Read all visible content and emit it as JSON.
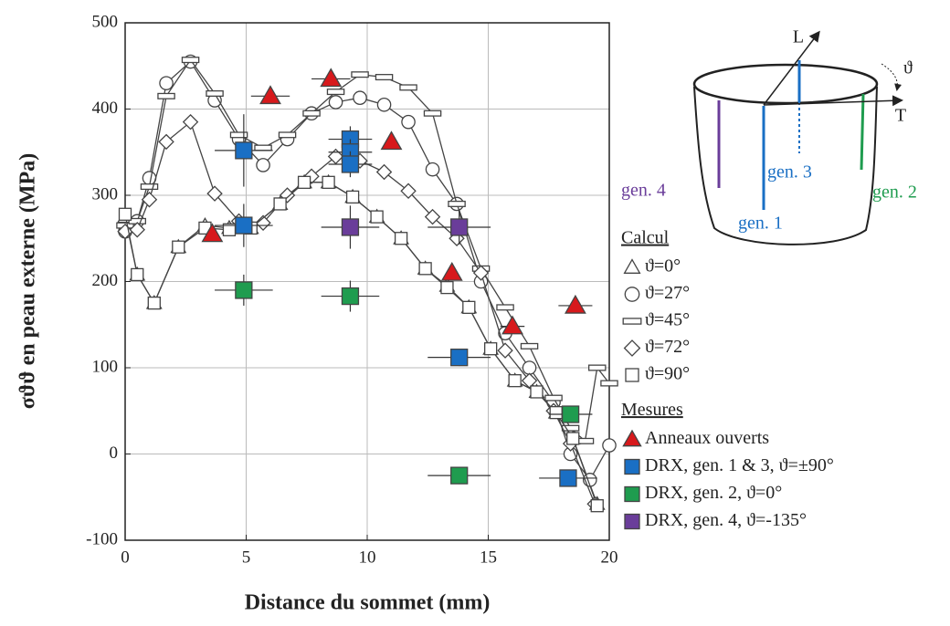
{
  "chart_data": {
    "type": "scatter",
    "x_label": "Distance du sommet (mm)",
    "y_label": "σϑϑ en peau externe (MPa)",
    "xlim": [
      0,
      20
    ],
    "ylim": [
      -100,
      500
    ],
    "xticks": [
      0,
      5,
      10,
      15,
      20
    ],
    "yticks": [
      -100,
      0,
      100,
      200,
      300,
      400,
      500
    ],
    "grid": true,
    "groups": [
      {
        "title": "Calcul",
        "series": [
          {
            "name": "ϑ=0°",
            "marker": "triangle",
            "color": "#444444",
            "x": [
              0,
              0.5,
              1.2,
              2.2,
              3.3,
              4.3,
              5.2,
              6.4,
              7.4,
              8.4,
              9.4,
              10.4,
              11.4,
              12.4,
              13.3,
              14.2,
              15.1,
              16.1,
              17,
              17.8,
              18.5,
              19.5
            ],
            "y": [
              275,
              208,
              175,
              240,
              265,
              262,
              262,
              290,
              315,
              315,
              298,
              275,
              250,
              215,
              195,
              170,
              122,
              85,
              72,
              48,
              18,
              -58
            ]
          },
          {
            "name": "ϑ=27°",
            "marker": "circle",
            "color": "#444444",
            "x": [
              0,
              0.5,
              1,
              1.7,
              2.7,
              3.7,
              4.7,
              5.7,
              6.7,
              7.7,
              8.7,
              9.7,
              10.7,
              11.7,
              12.7,
              13.7,
              14.7,
              15.7,
              16.7,
              17.7,
              18.4,
              19.2,
              20
            ],
            "y": [
              258,
              270,
              320,
              430,
              455,
              410,
              365,
              335,
              365,
              395,
              408,
              413,
              405,
              385,
              330,
              290,
              200,
              140,
              100,
              60,
              0,
              -30,
              10
            ]
          },
          {
            "name": "ϑ=45°",
            "marker": "rect",
            "color": "#444444",
            "x": [
              0,
              0.5,
              1,
              1.7,
              2.7,
              3.7,
              4.7,
              5.7,
              6.7,
              7.7,
              8.7,
              9.7,
              10.7,
              11.7,
              12.7,
              13.7,
              14.7,
              15.7,
              16.7,
              17.7,
              18.4,
              19,
              19.5,
              20
            ],
            "y": [
              265,
              270,
              310,
              415,
              457,
              418,
              370,
              355,
              370,
              395,
              420,
              440,
              437,
              425,
              395,
              290,
              215,
              170,
              125,
              65,
              30,
              15,
              100,
              82
            ]
          },
          {
            "name": "ϑ=72°",
            "marker": "diamond",
            "color": "#444444",
            "x": [
              0,
              0.5,
              1,
              1.7,
              2.7,
              3.7,
              4.7,
              5.7,
              6.7,
              7.7,
              8.7,
              9.7,
              10.7,
              11.7,
              12.7,
              13.7,
              14.7,
              15.7,
              16.7,
              17.7,
              18.4,
              19.4
            ],
            "y": [
              258,
              260,
              295,
              362,
              385,
              302,
              270,
              268,
              300,
              322,
              345,
              340,
              327,
              305,
              275,
              250,
              210,
              120,
              85,
              50,
              12,
              -58
            ]
          },
          {
            "name": "ϑ=90°",
            "marker": "square",
            "color": "#444444",
            "x": [
              0,
              0.5,
              1.2,
              2.2,
              3.3,
              4.3,
              5.2,
              6.4,
              7.4,
              8.4,
              9.4,
              10.4,
              11.4,
              12.4,
              13.3,
              14.2,
              15.1,
              16.1,
              17,
              17.8,
              18.5,
              19.5
            ],
            "y": [
              278,
              208,
              175,
              240,
              262,
              260,
              262,
              290,
              315,
              315,
              298,
              275,
              250,
              215,
              193,
              170,
              122,
              85,
              72,
              48,
              18,
              -60
            ]
          }
        ]
      },
      {
        "title": "Mesures",
        "series": [
          {
            "name": "Anneaux ouverts",
            "marker": "triangle",
            "color": "#d7191c",
            "x": [
              3.6,
              6,
              8.5,
              11,
              13.5,
              16,
              18.6
            ],
            "y": [
              255,
              415,
              435,
              362,
              210,
              148,
              172
            ],
            "xerr": [
              0,
              0.8,
              0.8,
              0,
              0,
              0.5,
              0.7
            ]
          },
          {
            "name": "DRX, gen. 1 & 3, ϑ=±90°",
            "marker": "square",
            "color": "#1a6fc4",
            "x": [
              4.9,
              4.9,
              9.3,
              9.3,
              9.3,
              13.8,
              18.3
            ],
            "y": [
              352,
              265,
              365,
              350,
              336,
              112,
              -28
            ],
            "xerr": [
              1.2,
              1.2,
              0.9,
              0.9,
              0.9,
              1.3,
              1.2
            ],
            "yerr": [
              42,
              25,
              15,
              15,
              15,
              10,
              10
            ]
          },
          {
            "name": "DRX, gen. 2, ϑ=0°",
            "marker": "square",
            "color": "#1f9c4f",
            "x": [
              4.9,
              9.3,
              13.8,
              18.4
            ],
            "y": [
              190,
              183,
              -25,
              46
            ],
            "xerr": [
              1.2,
              1.2,
              1.3,
              0.9
            ],
            "yerr": [
              18,
              18,
              10,
              10
            ]
          },
          {
            "name": "DRX, gen. 4, ϑ=-135°",
            "marker": "square",
            "color": "#6a3d9a",
            "x": [
              9.3,
              13.8
            ],
            "y": [
              263,
              263
            ],
            "xerr": [
              1.2,
              1.3
            ],
            "yerr": [
              25,
              20
            ]
          }
        ]
      }
    ]
  },
  "inset": {
    "axis_l": "L",
    "axis_t": "T",
    "angle": "ϑ",
    "gen4": "gen. 4",
    "gen3": "gen. 3",
    "gen2": "gen. 2",
    "gen1": "gen. 1"
  }
}
